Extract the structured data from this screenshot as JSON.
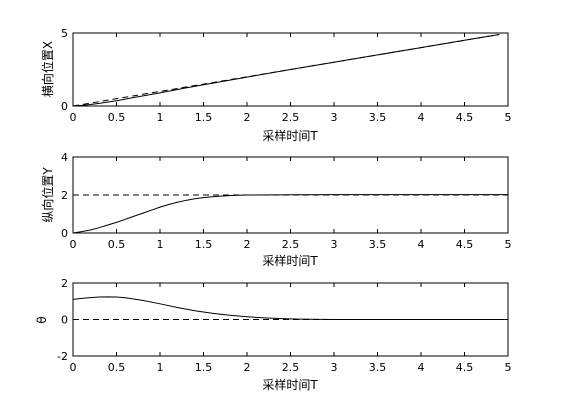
{
  "chart_data": [
    {
      "type": "line",
      "xlabel": "采样时间T",
      "ylabel": "横向位置X",
      "xlim": [
        0,
        5
      ],
      "ylim": [
        0,
        5
      ],
      "xticks": [
        0,
        0.5,
        1,
        1.5,
        2,
        2.5,
        3,
        3.5,
        4,
        4.5,
        5
      ],
      "xtick_labels": [
        "0",
        "0.5",
        "1",
        "1.5",
        "2",
        "2.5",
        "3",
        "3.5",
        "4",
        "4.5",
        "5"
      ],
      "yticks": [
        0,
        5
      ],
      "ytick_labels": [
        "0",
        "5"
      ],
      "grid": false,
      "series": [
        {
          "style": "dashed",
          "x": [
            0,
            4.9
          ],
          "y": [
            0,
            4.9
          ]
        },
        {
          "style": "solid",
          "x": [
            0,
            0.1,
            0.2,
            0.3,
            0.5,
            0.7,
            1.0,
            1.3,
            1.6,
            2.0,
            2.5,
            3.0,
            3.5,
            4.0,
            4.5,
            4.9
          ],
          "y": [
            0,
            0.04,
            0.1,
            0.18,
            0.36,
            0.58,
            0.9,
            1.24,
            1.56,
            1.98,
            2.5,
            3.0,
            3.5,
            4.0,
            4.5,
            4.9
          ]
        }
      ]
    },
    {
      "type": "line",
      "xlabel": "采样时间T",
      "ylabel": "纵向位置Y",
      "xlim": [
        0,
        5
      ],
      "ylim": [
        0,
        4
      ],
      "xticks": [
        0,
        0.5,
        1,
        1.5,
        2,
        2.5,
        3,
        3.5,
        4,
        4.5,
        5
      ],
      "xtick_labels": [
        "0",
        "0.5",
        "1",
        "1.5",
        "2",
        "2.5",
        "3",
        "3.5",
        "4",
        "4.5",
        "5"
      ],
      "yticks": [
        0,
        2,
        4
      ],
      "ytick_labels": [
        "0",
        "2",
        "4"
      ],
      "grid": false,
      "series": [
        {
          "style": "dashed",
          "x": [
            0,
            5
          ],
          "y": [
            2,
            2
          ]
        },
        {
          "style": "solid",
          "x": [
            0,
            0.1,
            0.2,
            0.3,
            0.4,
            0.5,
            0.6,
            0.7,
            0.8,
            0.9,
            1.0,
            1.1,
            1.2,
            1.3,
            1.4,
            1.5,
            1.6,
            1.7,
            1.8,
            1.9,
            2.0,
            2.5,
            3.0,
            3.5,
            4.0,
            4.5,
            5.0
          ],
          "y": [
            0,
            0.07,
            0.16,
            0.28,
            0.42,
            0.56,
            0.72,
            0.88,
            1.04,
            1.2,
            1.36,
            1.5,
            1.62,
            1.72,
            1.8,
            1.86,
            1.91,
            1.94,
            1.97,
            1.99,
            2.0,
            2.01,
            2.02,
            2.02,
            2.02,
            2.02,
            2.02
          ]
        }
      ]
    },
    {
      "type": "line",
      "xlabel": "采样时间T",
      "ylabel": "θ",
      "xlim": [
        0,
        5
      ],
      "ylim": [
        -2,
        2
      ],
      "xticks": [
        0,
        0.5,
        1,
        1.5,
        2,
        2.5,
        3,
        3.5,
        4,
        4.5,
        5
      ],
      "xtick_labels": [
        "0",
        "0.5",
        "1",
        "1.5",
        "2",
        "2.5",
        "3",
        "3.5",
        "4",
        "4.5",
        "5"
      ],
      "yticks": [
        -2,
        0,
        2
      ],
      "ytick_labels": [
        "-2",
        "0",
        "2"
      ],
      "grid": false,
      "series": [
        {
          "style": "dashed",
          "x": [
            0,
            5
          ],
          "y": [
            0,
            0
          ]
        },
        {
          "style": "solid",
          "x": [
            0,
            0.1,
            0.2,
            0.3,
            0.4,
            0.5,
            0.6,
            0.8,
            1.0,
            1.2,
            1.4,
            1.6,
            1.8,
            2.0,
            2.2,
            2.4,
            2.6,
            3.0,
            3.5,
            4.0,
            4.5,
            5.0
          ],
          "y": [
            1.1,
            1.16,
            1.2,
            1.23,
            1.24,
            1.23,
            1.19,
            1.05,
            0.86,
            0.66,
            0.48,
            0.34,
            0.23,
            0.15,
            0.09,
            0.05,
            0.02,
            0,
            0,
            0,
            0,
            0
          ]
        }
      ]
    }
  ]
}
